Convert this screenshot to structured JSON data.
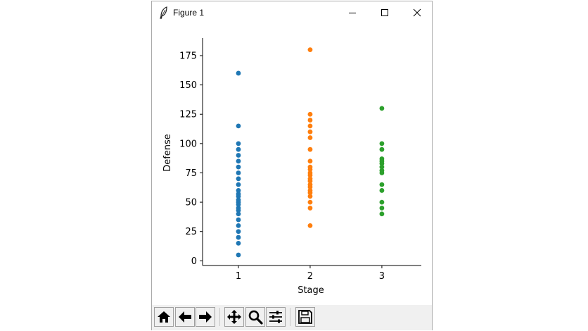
{
  "window": {
    "title": "Figure 1"
  },
  "colors": {
    "series_1": "#1f77b4",
    "series_2": "#ff7f0e",
    "series_3": "#2ca02c",
    "toolbar_bg": "#f0f0f0"
  },
  "toolbar": {
    "buttons": [
      {
        "name": "home-icon"
      },
      {
        "name": "back-arrow-icon"
      },
      {
        "name": "forward-arrow-icon"
      },
      {
        "name": "pan-icon"
      },
      {
        "name": "zoom-icon"
      },
      {
        "name": "configure-subplots-icon"
      },
      {
        "name": "save-icon"
      }
    ]
  },
  "chart_data": {
    "type": "scatter",
    "title": "",
    "xlabel": "Stage",
    "ylabel": "Defense",
    "xlim": [
      0.5,
      3.55
    ],
    "ylim": [
      -4,
      190
    ],
    "xticks": [
      1,
      2,
      3
    ],
    "yticks": [
      0,
      25,
      50,
      75,
      100,
      125,
      150,
      175
    ],
    "grid": false,
    "series": [
      {
        "x": 1,
        "color": "#1f77b4",
        "values": [
          5,
          15,
          20,
          25,
          30,
          35,
          40,
          43,
          45,
          48,
          50,
          52,
          55,
          57,
          60,
          65,
          70,
          75,
          80,
          85,
          90,
          95,
          100,
          115,
          160
        ]
      },
      {
        "x": 2,
        "color": "#ff7f0e",
        "values": [
          30,
          45,
          50,
          55,
          58,
          60,
          63,
          65,
          68,
          70,
          73,
          75,
          78,
          80,
          85,
          95,
          105,
          110,
          115,
          120,
          125,
          180
        ]
      },
      {
        "x": 3,
        "color": "#2ca02c",
        "values": [
          40,
          45,
          50,
          60,
          65,
          75,
          77,
          80,
          83,
          85,
          87,
          95,
          100,
          130
        ]
      }
    ]
  }
}
